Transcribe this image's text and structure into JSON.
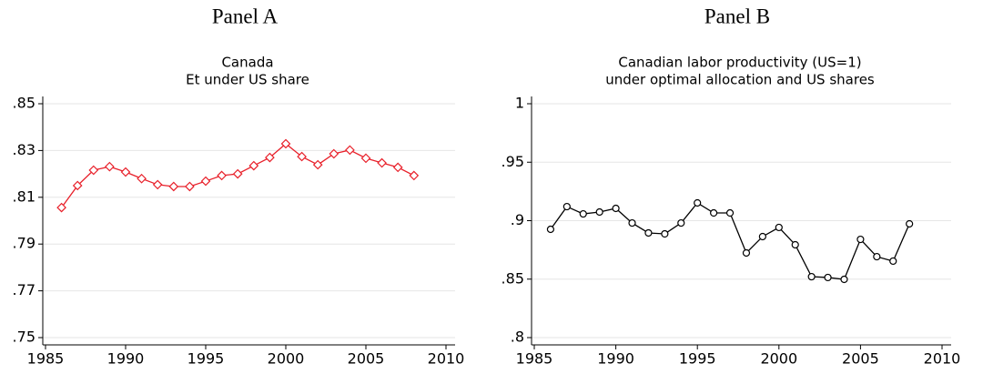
{
  "chart_data": [
    {
      "type": "line",
      "label": "Panel A",
      "title": "Canada",
      "subtitle": "Et under US share",
      "x": [
        1986,
        1987,
        1988,
        1989,
        1990,
        1991,
        1992,
        1993,
        1994,
        1995,
        1996,
        1997,
        1998,
        1999,
        2000,
        2001,
        2002,
        2003,
        2004,
        2005,
        2006,
        2007,
        2008
      ],
      "series": [
        {
          "color": "#e8202a",
          "marker": "diamond",
          "values": [
            0.8056,
            0.815,
            0.8216,
            0.8231,
            0.8208,
            0.818,
            0.8154,
            0.8146,
            0.8146,
            0.8169,
            0.8193,
            0.82,
            0.8235,
            0.827,
            0.8329,
            0.8274,
            0.8239,
            0.8286,
            0.8302,
            0.8267,
            0.8247,
            0.8228,
            0.8193
          ]
        }
      ],
      "xlim": [
        1985,
        2010
      ],
      "xticks": [
        1985,
        1990,
        1995,
        2000,
        2005,
        2010
      ],
      "ylim": [
        0.75,
        0.85
      ],
      "yticks": [
        {
          "value": 0.75,
          "label": ".75"
        },
        {
          "value": 0.77,
          "label": ".77"
        },
        {
          "value": 0.79,
          "label": ".79"
        },
        {
          "value": 0.81,
          "label": ".81"
        },
        {
          "value": 0.83,
          "label": ".83"
        },
        {
          "value": 0.85,
          "label": ".85"
        }
      ],
      "grid": true
    },
    {
      "type": "line",
      "label": "Panel B",
      "title": "Canadian labor productivity (US=1)",
      "subtitle": "under optimal allocation and US shares",
      "x": [
        1986,
        1987,
        1988,
        1989,
        1990,
        1991,
        1992,
        1993,
        1994,
        1995,
        1996,
        1997,
        1998,
        1999,
        2000,
        2001,
        2002,
        2003,
        2004,
        2005,
        2006,
        2007,
        2008
      ],
      "series": [
        {
          "color": "#000000",
          "marker": "circle",
          "values": [
            0.8926,
            0.912,
            0.9058,
            0.9074,
            0.9105,
            0.898,
            0.8895,
            0.8887,
            0.898,
            0.9152,
            0.9066,
            0.9066,
            0.8724,
            0.8864,
            0.8942,
            0.8794,
            0.8521,
            0.8514,
            0.8498,
            0.884,
            0.8692,
            0.8654,
            0.8973
          ]
        }
      ],
      "xlim": [
        1985,
        2010
      ],
      "xticks": [
        1985,
        1990,
        1995,
        2000,
        2005,
        2010
      ],
      "ylim": [
        0.8,
        1
      ],
      "yticks": [
        {
          "value": 0.8,
          "label": ".8"
        },
        {
          "value": 0.85,
          "label": ".85"
        },
        {
          "value": 0.9,
          "label": ".9"
        },
        {
          "value": 0.95,
          "label": ".95"
        },
        1
      ],
      "grid": true
    }
  ]
}
